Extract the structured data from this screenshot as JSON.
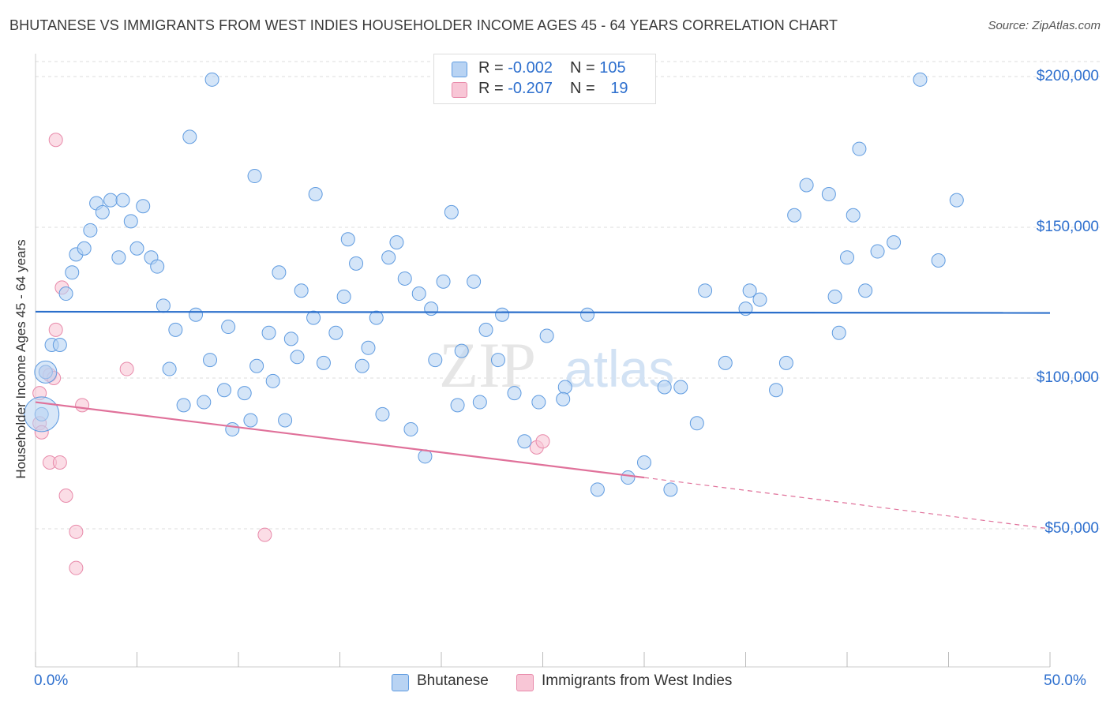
{
  "title": "BHUTANESE VS IMMIGRANTS FROM WEST INDIES HOUSEHOLDER INCOME AGES 45 - 64 YEARS CORRELATION CHART",
  "source": "Source: ZipAtlas.com",
  "watermark": {
    "zip": "ZIP",
    "atlas": "atlas"
  },
  "legend": {
    "rows": [
      {
        "r_label": "R = ",
        "r_value": "-0.002",
        "n_label": "N = ",
        "n_value": "105"
      },
      {
        "r_label": "R = ",
        "r_value": "-0.207",
        "n_label": "N = ",
        "n_value": "19"
      }
    ]
  },
  "colors": {
    "blue_fill": "#b8d3f3",
    "blue_stroke": "#5f9be0",
    "blue_line": "#2b6fcb",
    "pink_fill": "#f8c6d6",
    "pink_stroke": "#e88aaa",
    "pink_line": "#e0719a",
    "axis_text": "#2d6fce",
    "grid": "#dddddd"
  },
  "chart_data": {
    "type": "scatter",
    "title": "BHUTANESE VS IMMIGRANTS FROM WEST INDIES HOUSEHOLDER INCOME AGES 45 - 64 YEARS CORRELATION CHART",
    "xlabel": "",
    "ylabel": "Householder Income Ages 45 - 64 years",
    "xlim": [
      0,
      50
    ],
    "ylim": [
      20000,
      210000
    ],
    "x_tick_labels": [
      "0.0%",
      "50.0%"
    ],
    "y_ticks": [
      50000,
      100000,
      150000,
      200000
    ],
    "y_tick_labels": [
      "$50,000",
      "$100,000",
      "$150,000",
      "$200,000"
    ],
    "grid": true,
    "legend_position": "top-center",
    "series": [
      {
        "name": "Bhutanese",
        "color": "#5f9be0",
        "trend": {
          "x": [
            0,
            50
          ],
          "y": [
            122000,
            121600
          ],
          "dashed_from": null
        },
        "points": [
          [
            0.3,
            88000
          ],
          [
            0.5,
            102000
          ],
          [
            0.8,
            111000
          ],
          [
            1.2,
            111000
          ],
          [
            1.5,
            128000
          ],
          [
            1.8,
            135000
          ],
          [
            2.0,
            141000
          ],
          [
            2.4,
            143000
          ],
          [
            2.7,
            149000
          ],
          [
            3.0,
            158000
          ],
          [
            3.3,
            155000
          ],
          [
            3.7,
            159000
          ],
          [
            4.1,
            140000
          ],
          [
            4.3,
            159000
          ],
          [
            4.7,
            152000
          ],
          [
            5.0,
            143000
          ],
          [
            5.3,
            157000
          ],
          [
            5.7,
            140000
          ],
          [
            6.0,
            137000
          ],
          [
            6.3,
            124000
          ],
          [
            6.6,
            103000
          ],
          [
            6.9,
            116000
          ],
          [
            7.3,
            91000
          ],
          [
            7.6,
            180000
          ],
          [
            7.9,
            121000
          ],
          [
            8.3,
            92000
          ],
          [
            8.6,
            106000
          ],
          [
            8.7,
            199000
          ],
          [
            9.3,
            96000
          ],
          [
            9.5,
            117000
          ],
          [
            9.7,
            83000
          ],
          [
            10.3,
            95000
          ],
          [
            10.6,
            86000
          ],
          [
            10.8,
            167000
          ],
          [
            10.9,
            104000
          ],
          [
            11.5,
            115000
          ],
          [
            11.7,
            99000
          ],
          [
            12.0,
            135000
          ],
          [
            12.3,
            86000
          ],
          [
            12.6,
            113000
          ],
          [
            12.9,
            107000
          ],
          [
            13.1,
            129000
          ],
          [
            13.7,
            120000
          ],
          [
            13.8,
            161000
          ],
          [
            14.2,
            105000
          ],
          [
            14.8,
            115000
          ],
          [
            15.2,
            127000
          ],
          [
            15.4,
            146000
          ],
          [
            15.8,
            138000
          ],
          [
            16.1,
            104000
          ],
          [
            16.4,
            110000
          ],
          [
            16.8,
            120000
          ],
          [
            17.1,
            88000
          ],
          [
            17.4,
            140000
          ],
          [
            17.8,
            145000
          ],
          [
            18.2,
            133000
          ],
          [
            18.5,
            83000
          ],
          [
            18.9,
            128000
          ],
          [
            19.2,
            74000
          ],
          [
            19.5,
            123000
          ],
          [
            19.7,
            106000
          ],
          [
            20.1,
            132000
          ],
          [
            20.5,
            155000
          ],
          [
            20.8,
            91000
          ],
          [
            21.0,
            109000
          ],
          [
            21.6,
            132000
          ],
          [
            21.9,
            92000
          ],
          [
            22.2,
            116000
          ],
          [
            22.8,
            106000
          ],
          [
            23.0,
            121000
          ],
          [
            23.6,
            95000
          ],
          [
            24.1,
            79000
          ],
          [
            24.8,
            92000
          ],
          [
            25.2,
            114000
          ],
          [
            26.1,
            97000
          ],
          [
            26.0,
            93000
          ],
          [
            27.2,
            121000
          ],
          [
            27.7,
            63000
          ],
          [
            29.2,
            67000
          ],
          [
            30.0,
            72000
          ],
          [
            31.0,
            97000
          ],
          [
            31.3,
            63000
          ],
          [
            31.8,
            97000
          ],
          [
            32.6,
            85000
          ],
          [
            33.0,
            129000
          ],
          [
            34.0,
            105000
          ],
          [
            35.0,
            123000
          ],
          [
            35.2,
            129000
          ],
          [
            35.7,
            126000
          ],
          [
            36.5,
            96000
          ],
          [
            37.0,
            105000
          ],
          [
            37.4,
            154000
          ],
          [
            38.0,
            164000
          ],
          [
            39.1,
            161000
          ],
          [
            39.4,
            127000
          ],
          [
            39.6,
            115000
          ],
          [
            40.0,
            140000
          ],
          [
            40.3,
            154000
          ],
          [
            40.6,
            176000
          ],
          [
            40.9,
            129000
          ],
          [
            41.5,
            142000
          ],
          [
            42.3,
            145000
          ],
          [
            43.6,
            199000
          ],
          [
            44.5,
            139000
          ],
          [
            45.4,
            159000
          ]
        ]
      },
      {
        "name": "Immigrants from West Indies",
        "color": "#e88aaa",
        "trend": {
          "x": [
            0,
            30,
            50
          ],
          "y": [
            92000,
            67000,
            50000
          ],
          "dashed_from": 30
        },
        "points": [
          [
            0.2,
            95000
          ],
          [
            0.2,
            85000
          ],
          [
            0.3,
            82000
          ],
          [
            0.5,
            102000
          ],
          [
            0.7,
            101000
          ],
          [
            0.7,
            72000
          ],
          [
            0.9,
            100000
          ],
          [
            1.0,
            179000
          ],
          [
            1.0,
            116000
          ],
          [
            1.2,
            72000
          ],
          [
            1.3,
            130000
          ],
          [
            1.5,
            61000
          ],
          [
            2.0,
            37000
          ],
          [
            2.0,
            49000
          ],
          [
            2.3,
            91000
          ],
          [
            4.5,
            103000
          ],
          [
            11.3,
            48000
          ],
          [
            24.7,
            77000
          ],
          [
            25.0,
            79000
          ]
        ]
      }
    ]
  }
}
